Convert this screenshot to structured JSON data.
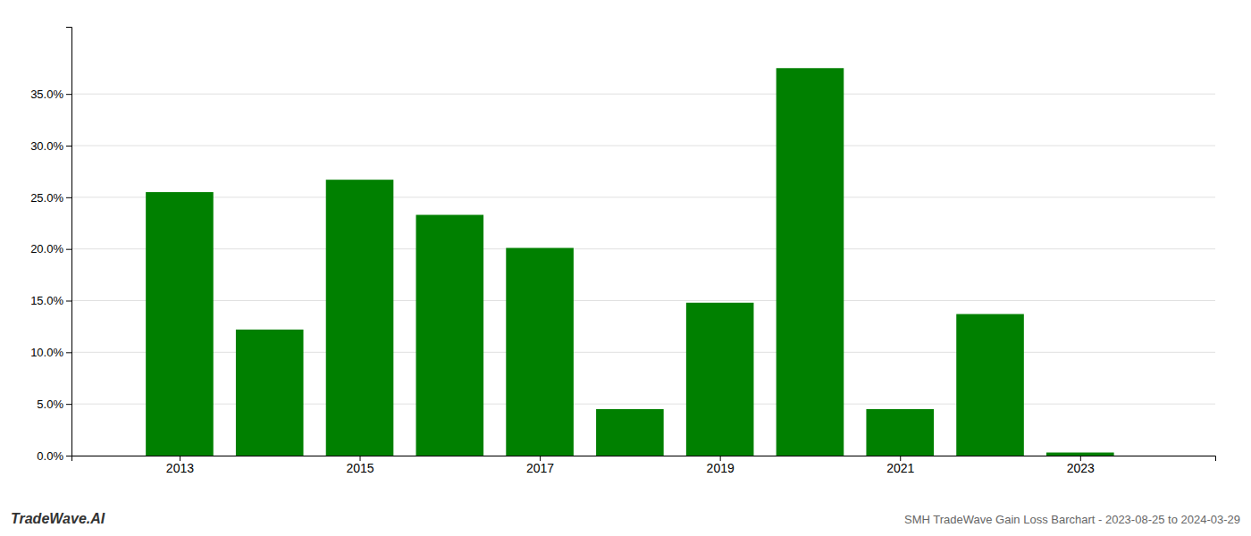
{
  "chart_data": {
    "type": "bar",
    "x": [
      2013,
      2014,
      2015,
      2016,
      2017,
      2018,
      2019,
      2020,
      2021,
      2022,
      2023
    ],
    "values": [
      0.255,
      0.122,
      0.267,
      0.233,
      0.201,
      0.045,
      0.148,
      0.375,
      0.045,
      0.137,
      0.003
    ],
    "color": "#008000",
    "xlim": [
      2011.8,
      2024.5
    ],
    "xticks": [
      2013,
      2015,
      2017,
      2019,
      2021,
      2023
    ],
    "ylim": [
      0,
      0.415
    ],
    "yticks": [
      {
        "value": 0.0,
        "label": "0.0%"
      },
      {
        "value": 0.05,
        "label": "5.0%"
      },
      {
        "value": 0.1,
        "label": "10.0%"
      },
      {
        "value": 0.15,
        "label": "15.0%"
      },
      {
        "value": 0.2,
        "label": "20.0%"
      },
      {
        "value": 0.25,
        "label": "25.0%"
      },
      {
        "value": 0.3,
        "label": "30.0%"
      },
      {
        "value": 0.35,
        "label": "35.0%"
      }
    ],
    "grid": true,
    "annotations": [
      "TradeWave.AI",
      "SMH TradeWave Gain Loss Barchart - 2023-08-25 to 2024-03-29"
    ]
  }
}
